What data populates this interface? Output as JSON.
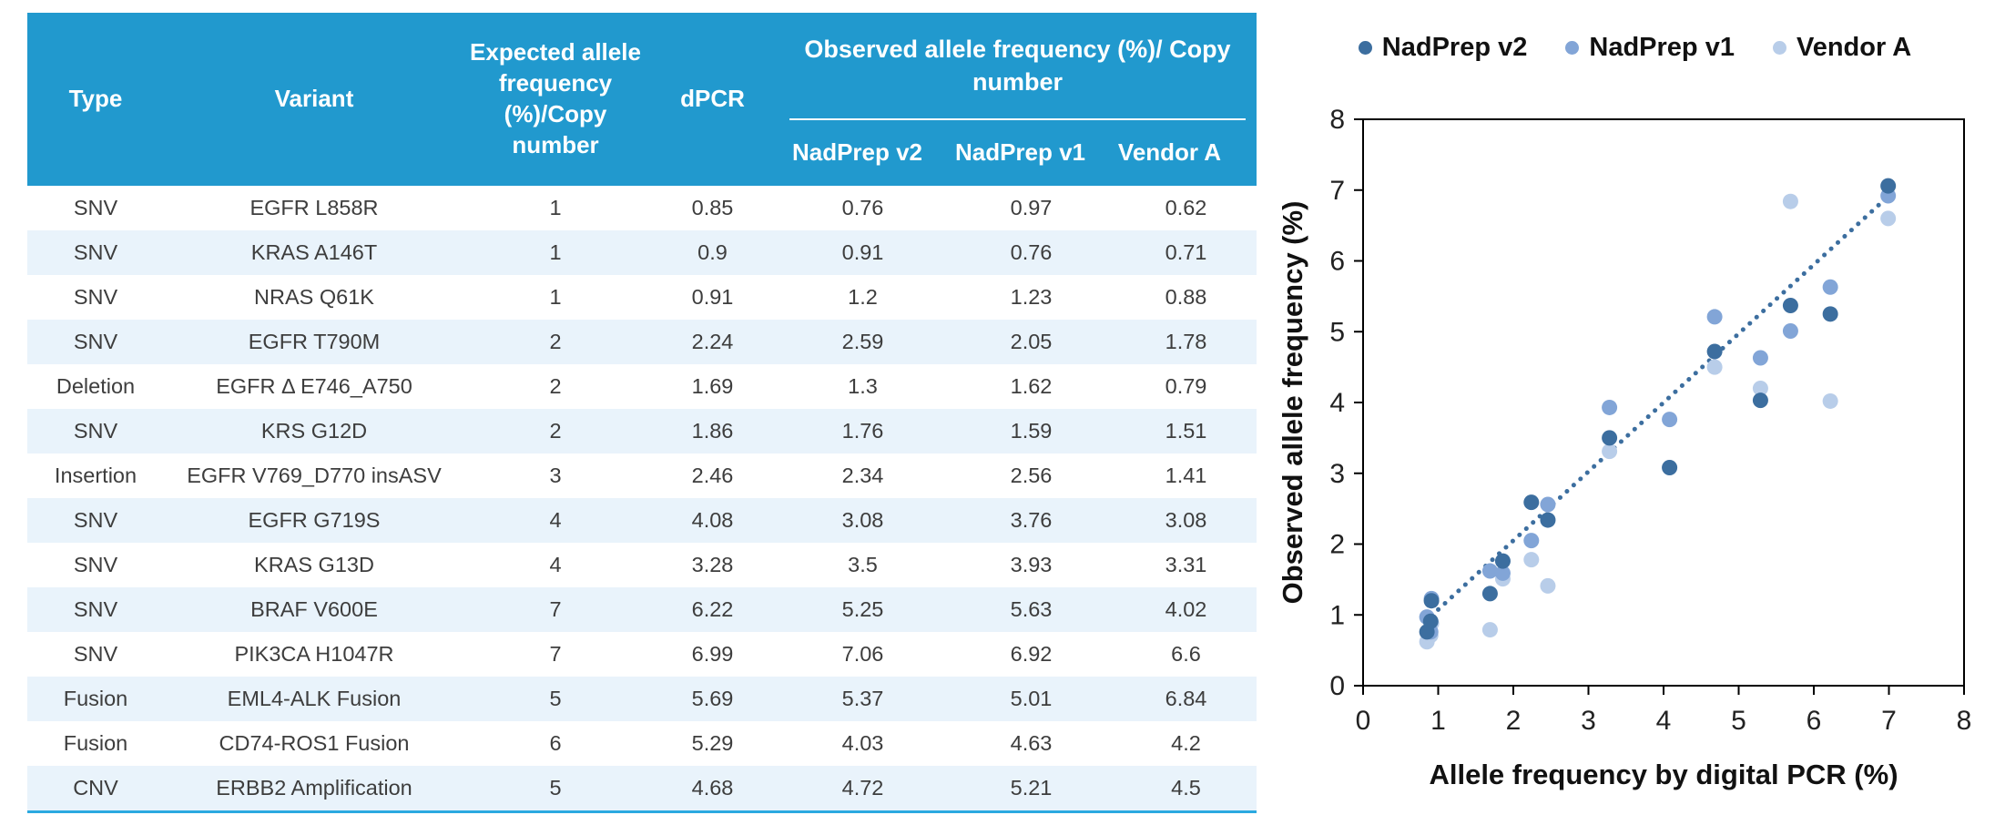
{
  "colors": {
    "table_header_bg": "#2199CE",
    "table_row_alt": "#E9F3FB",
    "table_bottom_border": "#2BA9E0",
    "body_text": "#3d3d3d",
    "axis_black": "#000000",
    "series_nadprep_v2": "#3C6E9F",
    "series_nadprep_v1": "#82A5D7",
    "series_vendor_a": "#B8CDE9",
    "trendline": "#3C6E9F"
  },
  "table": {
    "header": {
      "type": "Type",
      "variant": "Variant",
      "expected": "Expected allele frequency (%)/Copy number",
      "dpcr": "dPCR",
      "observed_group": "Observed allele frequency (%)/ Copy number",
      "sub": [
        "NadPrep v2",
        "NadPrep v1",
        "Vendor A"
      ]
    },
    "rows": [
      [
        "SNV",
        "EGFR L858R",
        "1",
        "0.85",
        "0.76",
        "0.97",
        "0.62"
      ],
      [
        "SNV",
        "KRAS A146T",
        "1",
        "0.9",
        "0.91",
        "0.76",
        "0.71"
      ],
      [
        "SNV",
        "NRAS Q61K",
        "1",
        "0.91",
        "1.2",
        "1.23",
        "0.88"
      ],
      [
        "SNV",
        "EGFR T790M",
        "2",
        "2.24",
        "2.59",
        "2.05",
        "1.78"
      ],
      [
        "Deletion",
        "EGFR Δ E746_A750",
        "2",
        "1.69",
        "1.3",
        "1.62",
        "0.79"
      ],
      [
        "SNV",
        "KRS G12D",
        "2",
        "1.86",
        "1.76",
        "1.59",
        "1.51"
      ],
      [
        "Insertion",
        "EGFR V769_D770 insASV",
        "3",
        "2.46",
        "2.34",
        "2.56",
        "1.41"
      ],
      [
        "SNV",
        "EGFR G719S",
        "4",
        "4.08",
        "3.08",
        "3.76",
        "3.08"
      ],
      [
        "SNV",
        "KRAS G13D",
        "4",
        "3.28",
        "3.5",
        "3.93",
        "3.31"
      ],
      [
        "SNV",
        "BRAF V600E",
        "7",
        "6.22",
        "5.25",
        "5.63",
        "4.02"
      ],
      [
        "SNV",
        "PIK3CA H1047R",
        "7",
        "6.99",
        "7.06",
        "6.92",
        "6.6"
      ],
      [
        "Fusion",
        "EML4-ALK Fusion",
        "5",
        "5.69",
        "5.37",
        "5.01",
        "6.84"
      ],
      [
        "Fusion",
        "CD74-ROS1 Fusion",
        "6",
        "5.29",
        "4.03",
        "4.63",
        "4.2"
      ],
      [
        "CNV",
        "ERBB2 Amplification",
        "5",
        "4.68",
        "4.72",
        "5.21",
        "4.5"
      ]
    ]
  },
  "chart_data": {
    "type": "scatter",
    "xlabel": "Allele frequency by digital PCR (%)",
    "ylabel": "Observed allele frequency (%)",
    "xlim": [
      0,
      8
    ],
    "ylim": [
      0,
      8
    ],
    "xticks": [
      0,
      1,
      2,
      3,
      4,
      5,
      6,
      7,
      8
    ],
    "yticks": [
      0,
      1,
      2,
      3,
      4,
      5,
      6,
      7,
      8
    ],
    "grid": false,
    "legend_position": "top",
    "x": [
      0.85,
      0.9,
      0.91,
      2.24,
      1.69,
      1.86,
      2.46,
      4.08,
      3.28,
      6.22,
      6.99,
      5.69,
      5.29,
      4.68
    ],
    "series": [
      {
        "name": "Vendor A",
        "color": "#B8CDE9",
        "y": [
          0.62,
          0.71,
          0.88,
          1.78,
          0.79,
          1.51,
          1.41,
          3.08,
          3.31,
          4.02,
          6.6,
          6.84,
          4.2,
          4.5
        ]
      },
      {
        "name": "NadPrep v1",
        "color": "#82A5D7",
        "y": [
          0.97,
          0.76,
          1.23,
          2.05,
          1.62,
          1.59,
          2.56,
          3.76,
          3.93,
          5.63,
          6.92,
          5.01,
          4.63,
          5.21
        ]
      },
      {
        "name": "NadPrep v2",
        "color": "#3C6E9F",
        "y": [
          0.76,
          0.91,
          1.2,
          2.59,
          1.3,
          1.76,
          2.34,
          3.08,
          3.5,
          5.25,
          7.06,
          5.37,
          4.03,
          4.72
        ]
      }
    ],
    "legend_order": [
      "NadPrep v2",
      "NadPrep v1",
      "Vendor A"
    ],
    "trendline": {
      "style": "dotted",
      "color": "#3C6E9F",
      "x1": 0.82,
      "y1": 0.9,
      "x2": 7.05,
      "y2": 6.97
    }
  }
}
